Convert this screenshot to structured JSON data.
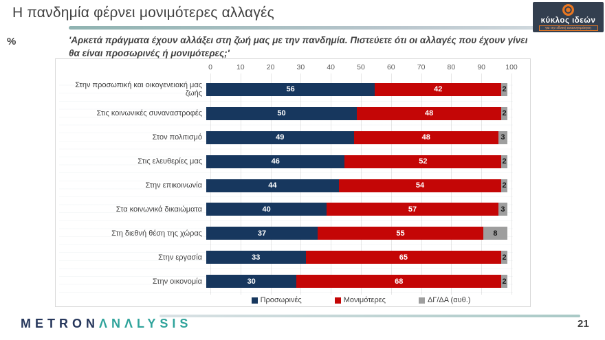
{
  "page": {
    "title": "Η πανδημία φέρνει μονιμότερες αλλαγές",
    "percent_label": "%",
    "subtitle": "'Αρκετά πράγματα έχουν αλλάξει στη ζωή μας με την πανδημία. Πιστεύετε ότι οι αλλαγές που έχουν γίνει θα είναι προσωρινές ή μονιμότερες;'",
    "page_number": "21"
  },
  "logo": {
    "brand": "κύκλος ιδεών",
    "tagline": "για την εθνική ανασυγκρότηση"
  },
  "footer": {
    "brand_part1": "METRON",
    "brand_part2": "ΛNΛLYSIS"
  },
  "chart_data": {
    "type": "bar",
    "orientation": "horizontal",
    "stacked": true,
    "title": "Η πανδημία φέρνει μονιμότερες αλλαγές",
    "xlabel": "%",
    "xlim": [
      0,
      100
    ],
    "axis_ticks": [
      0,
      10,
      20,
      30,
      40,
      50,
      60,
      70,
      80,
      90,
      100
    ],
    "grid": true,
    "legend_position": "bottom",
    "categories": [
      "Στην προσωπική και οικογενειακή μας ζωής",
      "Στις κοινωνικές συναναστροφές",
      "Στον πολιτισμό",
      "Στις ελευθερίες μας",
      "Στην επικοινωνία",
      "Στα κοινωνικά δικαιώματα",
      "Στη διεθνή θέση της χώρας",
      "Στην εργασία",
      "Στην οικονομία"
    ],
    "series": [
      {
        "key": "temporary",
        "name": "Προσωρινές",
        "color": "#17375e",
        "label_color": "#ffffff",
        "values": [
          56,
          50,
          49,
          46,
          44,
          40,
          37,
          33,
          30
        ]
      },
      {
        "key": "permanent",
        "name": "Μονιμότερες",
        "color": "#c40606",
        "label_color": "#ffffff",
        "values": [
          42,
          48,
          48,
          52,
          54,
          57,
          55,
          65,
          68
        ]
      },
      {
        "key": "dk-na",
        "name": "ΔΓ/ΔΑ (αυθ.)",
        "color": "#9e9e9e",
        "label_color": "#141414",
        "values": [
          2,
          2,
          3,
          2,
          2,
          3,
          8,
          2,
          2
        ]
      }
    ]
  }
}
